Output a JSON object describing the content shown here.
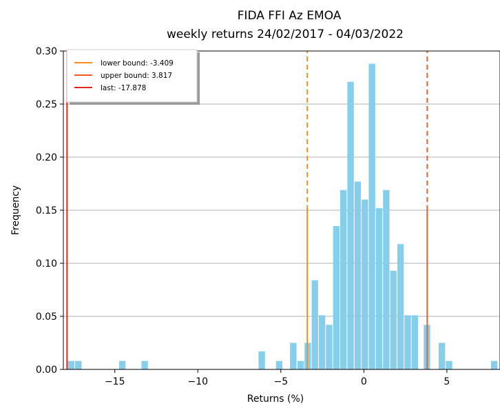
{
  "chart_data": {
    "type": "bar",
    "title": "FIDA FFI Az EMOA",
    "subtitle": "weekly returns 24/02/2017 - 04/03/2022",
    "xlabel": "Returns (%)",
    "ylabel": "Frequency",
    "xlim": [
      -18.1,
      8.2
    ],
    "ylim": [
      0,
      0.3
    ],
    "xticks": [
      -15,
      -10,
      -5,
      0,
      5
    ],
    "xtick_labels": [
      "−15",
      "−10",
      "−5",
      "0",
      "5"
    ],
    "yticks": [
      0.0,
      0.05,
      0.1,
      0.15,
      0.2,
      0.25,
      0.3
    ],
    "ytick_labels": [
      "0.00",
      "0.05",
      "0.10",
      "0.15",
      "0.20",
      "0.25",
      "0.30"
    ],
    "grid": "horizontal",
    "bar_color": "#87ceeb",
    "bin_width": 0.43,
    "bins": [
      {
        "x": -17.63,
        "y": 0.008
      },
      {
        "x": -17.2,
        "y": 0.008
      },
      {
        "x": -14.55,
        "y": 0.008
      },
      {
        "x": -13.2,
        "y": 0.008
      },
      {
        "x": -6.15,
        "y": 0.017
      },
      {
        "x": -5.1,
        "y": 0.008
      },
      {
        "x": -4.25,
        "y": 0.025
      },
      {
        "x": -3.8,
        "y": 0.008
      },
      {
        "x": -3.38,
        "y": 0.025
      },
      {
        "x": -2.95,
        "y": 0.084
      },
      {
        "x": -2.52,
        "y": 0.051
      },
      {
        "x": -2.09,
        "y": 0.042
      },
      {
        "x": -1.66,
        "y": 0.135
      },
      {
        "x": -1.23,
        "y": 0.169
      },
      {
        "x": -0.8,
        "y": 0.271
      },
      {
        "x": -0.37,
        "y": 0.177
      },
      {
        "x": 0.06,
        "y": 0.16
      },
      {
        "x": 0.49,
        "y": 0.288
      },
      {
        "x": 0.92,
        "y": 0.152
      },
      {
        "x": 1.35,
        "y": 0.169
      },
      {
        "x": 1.78,
        "y": 0.093
      },
      {
        "x": 2.21,
        "y": 0.118
      },
      {
        "x": 2.64,
        "y": 0.051
      },
      {
        "x": 3.07,
        "y": 0.051
      },
      {
        "x": 3.8,
        "y": 0.042
      },
      {
        "x": 4.7,
        "y": 0.025
      },
      {
        "x": 5.13,
        "y": 0.008
      },
      {
        "x": 7.85,
        "y": 0.008
      }
    ],
    "lines": [
      {
        "name": "lower bound: -3.409",
        "x": -3.409,
        "color": "#ff8c1a",
        "dashed": true,
        "solid_to": 0.15
      },
      {
        "name": "upper bound: 3.817",
        "x": 3.817,
        "color": "#f05a28",
        "dashed": true,
        "solid_to": 0.15
      },
      {
        "name": "last: -17.878",
        "x": -17.878,
        "color": "#e0241c",
        "dashed": false,
        "solid_to": 0.3
      }
    ],
    "legend_position": "top-left"
  }
}
